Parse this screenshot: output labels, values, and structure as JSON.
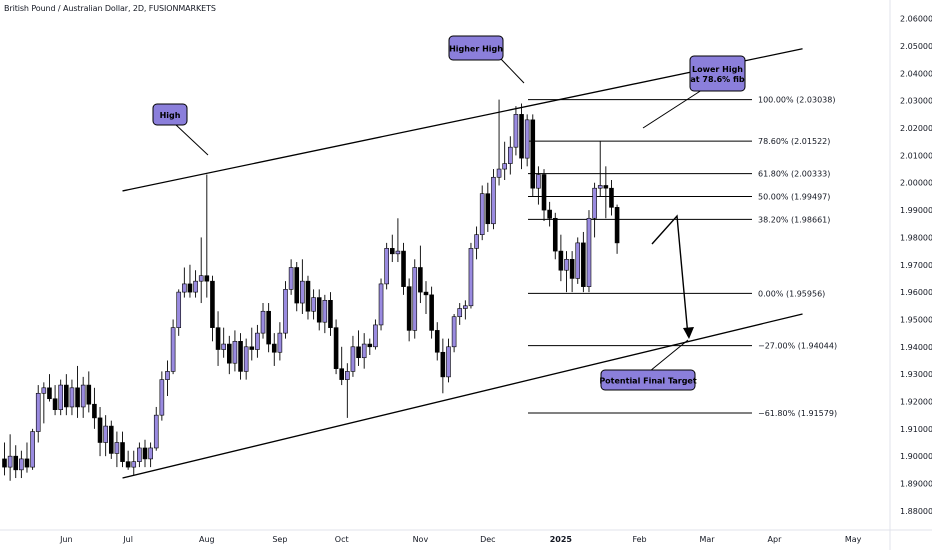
{
  "header": {
    "symbol_title": "British Pound / Australian Dollar, 2D, FUSIONMARKETS"
  },
  "colors": {
    "bull": "#9a8be0",
    "bear": "#000000",
    "callout_fill": "#8b7fdb",
    "line": "#000000"
  },
  "chart_data": {
    "type": "candlestick",
    "title": "British Pound / Australian Dollar, 2D, FUSIONMARKETS",
    "y_axis": {
      "range": [
        1.873,
        2.065
      ],
      "ticks": [
        "2.06000",
        "2.05000",
        "2.04000",
        "2.03000",
        "2.02000",
        "2.01000",
        "2.00000",
        "1.99000",
        "1.98000",
        "1.97000",
        "1.96000",
        "1.95000",
        "1.94000",
        "1.93000",
        "1.92000",
        "1.91000",
        "1.90000",
        "1.89000",
        "1.88000"
      ]
    },
    "x_axis": {
      "labels": [
        {
          "text": "Jun",
          "idx": 11
        },
        {
          "text": "Jul",
          "idx": 22
        },
        {
          "text": "Aug",
          "idx": 36
        },
        {
          "text": "Sep",
          "idx": 49
        },
        {
          "text": "Oct",
          "idx": 60
        },
        {
          "text": "Nov",
          "idx": 74
        },
        {
          "text": "Dec",
          "idx": 86
        },
        {
          "text": "2025",
          "idx": 99,
          "bold": true
        },
        {
          "text": "Feb",
          "idx": 113
        },
        {
          "text": "Mar",
          "idx": 125
        },
        {
          "text": "Apr",
          "idx": 137
        },
        {
          "text": "May",
          "idx": 151
        },
        {
          "text": "Jun",
          "idx": 165
        }
      ]
    },
    "candles": [
      {
        "o": 1.899,
        "h": 1.905,
        "l": 1.893,
        "c": 1.896
      },
      {
        "o": 1.896,
        "h": 1.908,
        "l": 1.891,
        "c": 1.9
      },
      {
        "o": 1.9,
        "h": 1.904,
        "l": 1.892,
        "c": 1.895
      },
      {
        "o": 1.895,
        "h": 1.902,
        "l": 1.892,
        "c": 1.899
      },
      {
        "o": 1.899,
        "h": 1.905,
        "l": 1.894,
        "c": 1.896
      },
      {
        "o": 1.896,
        "h": 1.91,
        "l": 1.895,
        "c": 1.909
      },
      {
        "o": 1.909,
        "h": 1.926,
        "l": 1.905,
        "c": 1.923
      },
      {
        "o": 1.923,
        "h": 1.927,
        "l": 1.912,
        "c": 1.925
      },
      {
        "o": 1.925,
        "h": 1.93,
        "l": 1.92,
        "c": 1.921
      },
      {
        "o": 1.921,
        "h": 1.926,
        "l": 1.915,
        "c": 1.917
      },
      {
        "o": 1.917,
        "h": 1.928,
        "l": 1.915,
        "c": 1.926
      },
      {
        "o": 1.926,
        "h": 1.93,
        "l": 1.915,
        "c": 1.918
      },
      {
        "o": 1.918,
        "h": 1.928,
        "l": 1.915,
        "c": 1.925
      },
      {
        "o": 1.925,
        "h": 1.933,
        "l": 1.914,
        "c": 1.918
      },
      {
        "o": 1.918,
        "h": 1.929,
        "l": 1.914,
        "c": 1.926
      },
      {
        "o": 1.926,
        "h": 1.931,
        "l": 1.916,
        "c": 1.919
      },
      {
        "o": 1.919,
        "h": 1.925,
        "l": 1.91,
        "c": 1.914
      },
      {
        "o": 1.914,
        "h": 1.918,
        "l": 1.9,
        "c": 1.905
      },
      {
        "o": 1.905,
        "h": 1.915,
        "l": 1.9,
        "c": 1.911
      },
      {
        "o": 1.911,
        "h": 1.913,
        "l": 1.899,
        "c": 1.901
      },
      {
        "o": 1.901,
        "h": 1.909,
        "l": 1.896,
        "c": 1.905
      },
      {
        "o": 1.905,
        "h": 1.909,
        "l": 1.896,
        "c": 1.898
      },
      {
        "o": 1.898,
        "h": 1.902,
        "l": 1.895,
        "c": 1.896
      },
      {
        "o": 1.896,
        "h": 1.902,
        "l": 1.893,
        "c": 1.898
      },
      {
        "o": 1.898,
        "h": 1.905,
        "l": 1.896,
        "c": 1.903
      },
      {
        "o": 1.903,
        "h": 1.906,
        "l": 1.896,
        "c": 1.899
      },
      {
        "o": 1.899,
        "h": 1.905,
        "l": 1.896,
        "c": 1.903
      },
      {
        "o": 1.903,
        "h": 1.918,
        "l": 1.902,
        "c": 1.915
      },
      {
        "o": 1.915,
        "h": 1.931,
        "l": 1.913,
        "c": 1.928
      },
      {
        "o": 1.928,
        "h": 1.935,
        "l": 1.922,
        "c": 1.931
      },
      {
        "o": 1.931,
        "h": 1.95,
        "l": 1.93,
        "c": 1.947
      },
      {
        "o": 1.947,
        "h": 1.961,
        "l": 1.944,
        "c": 1.96
      },
      {
        "o": 1.96,
        "h": 1.969,
        "l": 1.958,
        "c": 1.963
      },
      {
        "o": 1.963,
        "h": 1.97,
        "l": 1.958,
        "c": 1.96
      },
      {
        "o": 1.96,
        "h": 1.968,
        "l": 1.958,
        "c": 1.964
      },
      {
        "o": 1.964,
        "h": 1.98,
        "l": 1.956,
        "c": 1.966
      },
      {
        "o": 1.966,
        "h": 2.003,
        "l": 1.958,
        "c": 1.964
      },
      {
        "o": 1.964,
        "h": 1.966,
        "l": 1.942,
        "c": 1.947
      },
      {
        "o": 1.947,
        "h": 1.953,
        "l": 1.933,
        "c": 1.939
      },
      {
        "o": 1.939,
        "h": 1.947,
        "l": 1.936,
        "c": 1.941
      },
      {
        "o": 1.941,
        "h": 1.944,
        "l": 1.93,
        "c": 1.934
      },
      {
        "o": 1.934,
        "h": 1.946,
        "l": 1.931,
        "c": 1.942
      },
      {
        "o": 1.942,
        "h": 1.945,
        "l": 1.928,
        "c": 1.931
      },
      {
        "o": 1.931,
        "h": 1.943,
        "l": 1.928,
        "c": 1.94
      },
      {
        "o": 1.94,
        "h": 1.947,
        "l": 1.935,
        "c": 1.939
      },
      {
        "o": 1.939,
        "h": 1.948,
        "l": 1.936,
        "c": 1.945
      },
      {
        "o": 1.945,
        "h": 1.956,
        "l": 1.943,
        "c": 1.953
      },
      {
        "o": 1.953,
        "h": 1.956,
        "l": 1.938,
        "c": 1.941
      },
      {
        "o": 1.941,
        "h": 1.945,
        "l": 1.933,
        "c": 1.938
      },
      {
        "o": 1.938,
        "h": 1.949,
        "l": 1.935,
        "c": 1.945
      },
      {
        "o": 1.945,
        "h": 1.964,
        "l": 1.943,
        "c": 1.961
      },
      {
        "o": 1.961,
        "h": 1.972,
        "l": 1.959,
        "c": 1.969
      },
      {
        "o": 1.969,
        "h": 1.971,
        "l": 1.953,
        "c": 1.956
      },
      {
        "o": 1.956,
        "h": 1.972,
        "l": 1.952,
        "c": 1.964
      },
      {
        "o": 1.964,
        "h": 1.966,
        "l": 1.95,
        "c": 1.953
      },
      {
        "o": 1.953,
        "h": 1.961,
        "l": 1.95,
        "c": 1.958
      },
      {
        "o": 1.958,
        "h": 1.961,
        "l": 1.946,
        "c": 1.949
      },
      {
        "o": 1.949,
        "h": 1.959,
        "l": 1.945,
        "c": 1.957
      },
      {
        "o": 1.957,
        "h": 1.96,
        "l": 1.944,
        "c": 1.947
      },
      {
        "o": 1.947,
        "h": 1.95,
        "l": 1.93,
        "c": 1.932
      },
      {
        "o": 1.932,
        "h": 1.94,
        "l": 1.926,
        "c": 1.928
      },
      {
        "o": 1.928,
        "h": 1.934,
        "l": 1.914,
        "c": 1.931
      },
      {
        "o": 1.931,
        "h": 1.944,
        "l": 1.929,
        "c": 1.94
      },
      {
        "o": 1.94,
        "h": 1.946,
        "l": 1.933,
        "c": 1.936
      },
      {
        "o": 1.936,
        "h": 1.945,
        "l": 1.932,
        "c": 1.941
      },
      {
        "o": 1.941,
        "h": 1.943,
        "l": 1.937,
        "c": 1.94
      },
      {
        "o": 1.94,
        "h": 1.95,
        "l": 1.939,
        "c": 1.948
      },
      {
        "o": 1.948,
        "h": 1.965,
        "l": 1.946,
        "c": 1.963
      },
      {
        "o": 1.963,
        "h": 1.978,
        "l": 1.961,
        "c": 1.976
      },
      {
        "o": 1.976,
        "h": 1.981,
        "l": 1.971,
        "c": 1.974
      },
      {
        "o": 1.974,
        "h": 1.987,
        "l": 1.971,
        "c": 1.975
      },
      {
        "o": 1.975,
        "h": 1.978,
        "l": 1.959,
        "c": 1.962
      },
      {
        "o": 1.962,
        "h": 1.965,
        "l": 1.942,
        "c": 1.946
      },
      {
        "o": 1.946,
        "h": 1.972,
        "l": 1.943,
        "c": 1.969
      },
      {
        "o": 1.969,
        "h": 1.977,
        "l": 1.956,
        "c": 1.96
      },
      {
        "o": 1.96,
        "h": 1.964,
        "l": 1.952,
        "c": 1.959
      },
      {
        "o": 1.959,
        "h": 1.962,
        "l": 1.943,
        "c": 1.946
      },
      {
        "o": 1.946,
        "h": 1.949,
        "l": 1.935,
        "c": 1.938
      },
      {
        "o": 1.938,
        "h": 1.943,
        "l": 1.923,
        "c": 1.929
      },
      {
        "o": 1.929,
        "h": 1.943,
        "l": 1.927,
        "c": 1.94
      },
      {
        "o": 1.94,
        "h": 1.952,
        "l": 1.938,
        "c": 1.951
      },
      {
        "o": 1.951,
        "h": 1.956,
        "l": 1.948,
        "c": 1.954
      },
      {
        "o": 1.954,
        "h": 1.957,
        "l": 1.95,
        "c": 1.955
      },
      {
        "o": 1.955,
        "h": 1.978,
        "l": 1.954,
        "c": 1.976
      },
      {
        "o": 1.976,
        "h": 1.984,
        "l": 1.972,
        "c": 1.981
      },
      {
        "o": 1.981,
        "h": 1.999,
        "l": 1.979,
        "c": 1.996
      },
      {
        "o": 1.996,
        "h": 2.0,
        "l": 1.982,
        "c": 1.985
      },
      {
        "o": 1.985,
        "h": 2.005,
        "l": 1.983,
        "c": 2.002
      },
      {
        "o": 2.002,
        "h": 2.0304,
        "l": 1.999,
        "c": 2.005
      },
      {
        "o": 2.005,
        "h": 2.015,
        "l": 2.001,
        "c": 2.007
      },
      {
        "o": 2.007,
        "h": 2.017,
        "l": 2.003,
        "c": 2.013
      },
      {
        "o": 2.013,
        "h": 2.028,
        "l": 2.01,
        "c": 2.025
      },
      {
        "o": 2.025,
        "h": 2.029,
        "l": 2.005,
        "c": 2.009
      },
      {
        "o": 2.009,
        "h": 2.025,
        "l": 2.006,
        "c": 2.023
      },
      {
        "o": 2.023,
        "h": 2.025,
        "l": 1.995,
        "c": 1.998
      },
      {
        "o": 1.998,
        "h": 2.006,
        "l": 1.992,
        "c": 2.003
      },
      {
        "o": 2.003,
        "h": 2.005,
        "l": 1.986,
        "c": 1.99
      },
      {
        "o": 1.99,
        "h": 1.993,
        "l": 1.984,
        "c": 1.987
      },
      {
        "o": 1.987,
        "h": 1.989,
        "l": 1.972,
        "c": 1.975
      },
      {
        "o": 1.975,
        "h": 1.981,
        "l": 1.964,
        "c": 1.968
      },
      {
        "o": 1.968,
        "h": 1.975,
        "l": 1.96,
        "c": 1.972
      },
      {
        "o": 1.972,
        "h": 1.975,
        "l": 1.96,
        "c": 1.965
      },
      {
        "o": 1.965,
        "h": 1.98,
        "l": 1.963,
        "c": 1.978
      },
      {
        "o": 1.978,
        "h": 1.982,
        "l": 1.96,
        "c": 1.962
      },
      {
        "o": 1.962,
        "h": 1.99,
        "l": 1.96,
        "c": 1.987
      },
      {
        "o": 1.987,
        "h": 2.0,
        "l": 1.98,
        "c": 1.998
      },
      {
        "o": 1.998,
        "h": 2.0152,
        "l": 1.995,
        "c": 1.999
      },
      {
        "o": 1.999,
        "h": 2.006,
        "l": 1.987,
        "c": 1.998
      },
      {
        "o": 1.998,
        "h": 2.001,
        "l": 1.988,
        "c": 1.991
      },
      {
        "o": 1.991,
        "h": 1.992,
        "l": 1.974,
        "c": 1.978
      }
    ],
    "trendlines": [
      {
        "from": {
          "idx": 21,
          "price": 1.892
        },
        "to": {
          "idx": 142,
          "price": 1.952
        }
      },
      {
        "from": {
          "idx": 21,
          "price": 1.997
        },
        "to": {
          "idx": 142,
          "price": 2.049
        }
      }
    ],
    "fib_levels": [
      {
        "label": "100.00% (2.03038)",
        "price": 2.03038
      },
      {
        "label": "78.60% (2.01522)",
        "price": 2.01522
      },
      {
        "label": "61.80% (2.00333)",
        "price": 2.00333
      },
      {
        "label": "50.00% (1.99497)",
        "price": 1.99497
      },
      {
        "label": "38.20% (1.98661)",
        "price": 1.98661
      },
      {
        "label": "0.00% (1.95956)",
        "price": 1.95956
      },
      {
        "label": "−27.00% (1.94044)",
        "price": 1.94044
      },
      {
        "label": "−61.80% (1.91579)",
        "price": 1.91579
      }
    ],
    "callouts": [
      {
        "text": "High"
      },
      {
        "text": "Higher High"
      },
      {
        "text": "Lower High\nat 78.6% fib"
      },
      {
        "text": "Potential Final Target"
      }
    ]
  }
}
